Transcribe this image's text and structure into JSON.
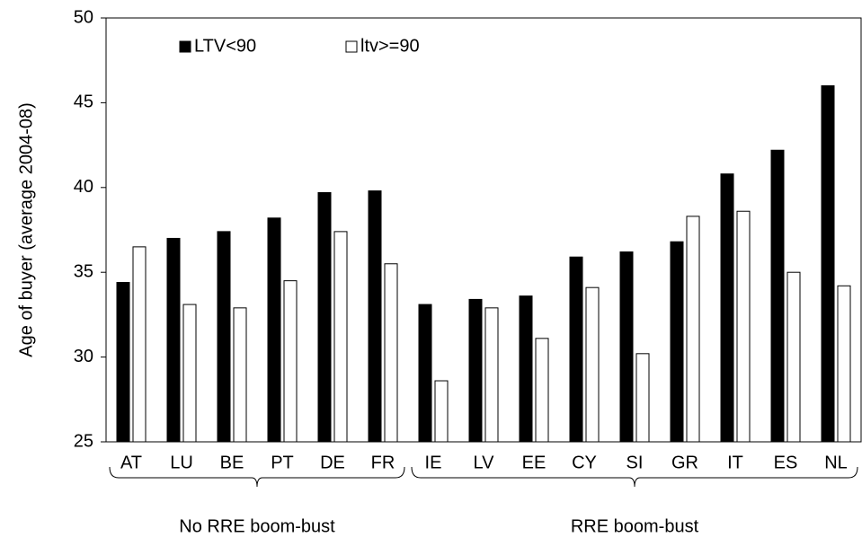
{
  "chart_data": {
    "type": "bar",
    "y_label": "Age of buyer (average 2004-08)",
    "categories": [
      "AT",
      "LU",
      "BE",
      "PT",
      "DE",
      "FR",
      "IE",
      "LV",
      "EE",
      "CY",
      "SI",
      "GR",
      "IT",
      "ES",
      "NL"
    ],
    "series": [
      {
        "name": "LTV<90",
        "color": "#000000",
        "values": [
          34.4,
          37.0,
          37.4,
          38.2,
          39.7,
          39.8,
          33.1,
          33.4,
          33.6,
          35.9,
          36.2,
          36.8,
          40.8,
          42.2,
          46.0
        ]
      },
      {
        "name": "ltv>=90",
        "color": "#ffffff",
        "values": [
          36.5,
          33.1,
          32.9,
          34.5,
          37.4,
          35.5,
          28.6,
          32.9,
          31.1,
          34.1,
          30.2,
          38.3,
          38.6,
          35.0,
          34.2
        ]
      }
    ],
    "groups": [
      "No RRE boom-bust",
      "RRE boom-bust"
    ],
    "ylim": [
      25,
      50
    ],
    "yticks": [
      25,
      30,
      35,
      40,
      45,
      50
    ],
    "grid": false
  }
}
